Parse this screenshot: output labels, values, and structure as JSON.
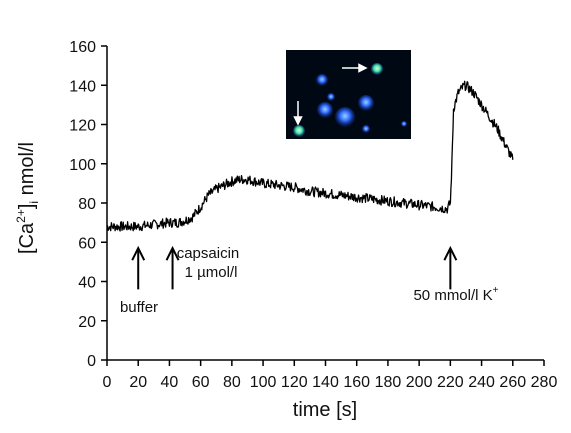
{
  "chart_data": {
    "type": "line",
    "xlabel": "time [s]",
    "ylabel_main": "[Ca",
    "ylabel_sup": "2+",
    "ylabel_close": "]",
    "ylabel_sub": "i",
    "ylabel_unit": " nmol/l",
    "xlim": [
      0,
      280
    ],
    "ylim": [
      0,
      160
    ],
    "xticks": [
      0,
      20,
      40,
      60,
      80,
      100,
      120,
      140,
      160,
      180,
      200,
      220,
      240,
      260,
      280
    ],
    "yticks": [
      0,
      20,
      40,
      60,
      80,
      100,
      120,
      140,
      160
    ],
    "grid": false,
    "series": [
      {
        "color": "#000000",
        "x": [
          0,
          10,
          20,
          30,
          40,
          45,
          50,
          55,
          60,
          65,
          70,
          75,
          80,
          85,
          90,
          100,
          110,
          120,
          130,
          140,
          150,
          160,
          170,
          180,
          190,
          200,
          210,
          218,
          220,
          221,
          222,
          225,
          228,
          230,
          235,
          240,
          245,
          250,
          255,
          260
        ],
        "y": [
          68,
          68,
          68,
          69,
          70,
          70,
          71,
          73,
          78,
          84,
          87,
          89,
          91,
          92,
          92,
          90,
          89,
          88,
          86,
          85,
          84,
          83,
          82,
          81,
          80,
          79,
          78,
          77,
          80,
          100,
          128,
          136,
          139,
          140,
          136,
          130,
          124,
          118,
          110,
          102
        ]
      }
    ],
    "annotations": [
      {
        "id": "buffer",
        "x": 20,
        "text": "buffer"
      },
      {
        "id": "capsaicin",
        "x": 42,
        "line1": "capsaicin",
        "line2": "1 µmol/l"
      },
      {
        "id": "potassium",
        "x": 220,
        "main": "50 mmol/l K",
        "sup": "+"
      }
    ]
  },
  "inset": {
    "background": "#000814",
    "cell_color": "#1e5cff",
    "highlight_color": "#40e0b0"
  }
}
